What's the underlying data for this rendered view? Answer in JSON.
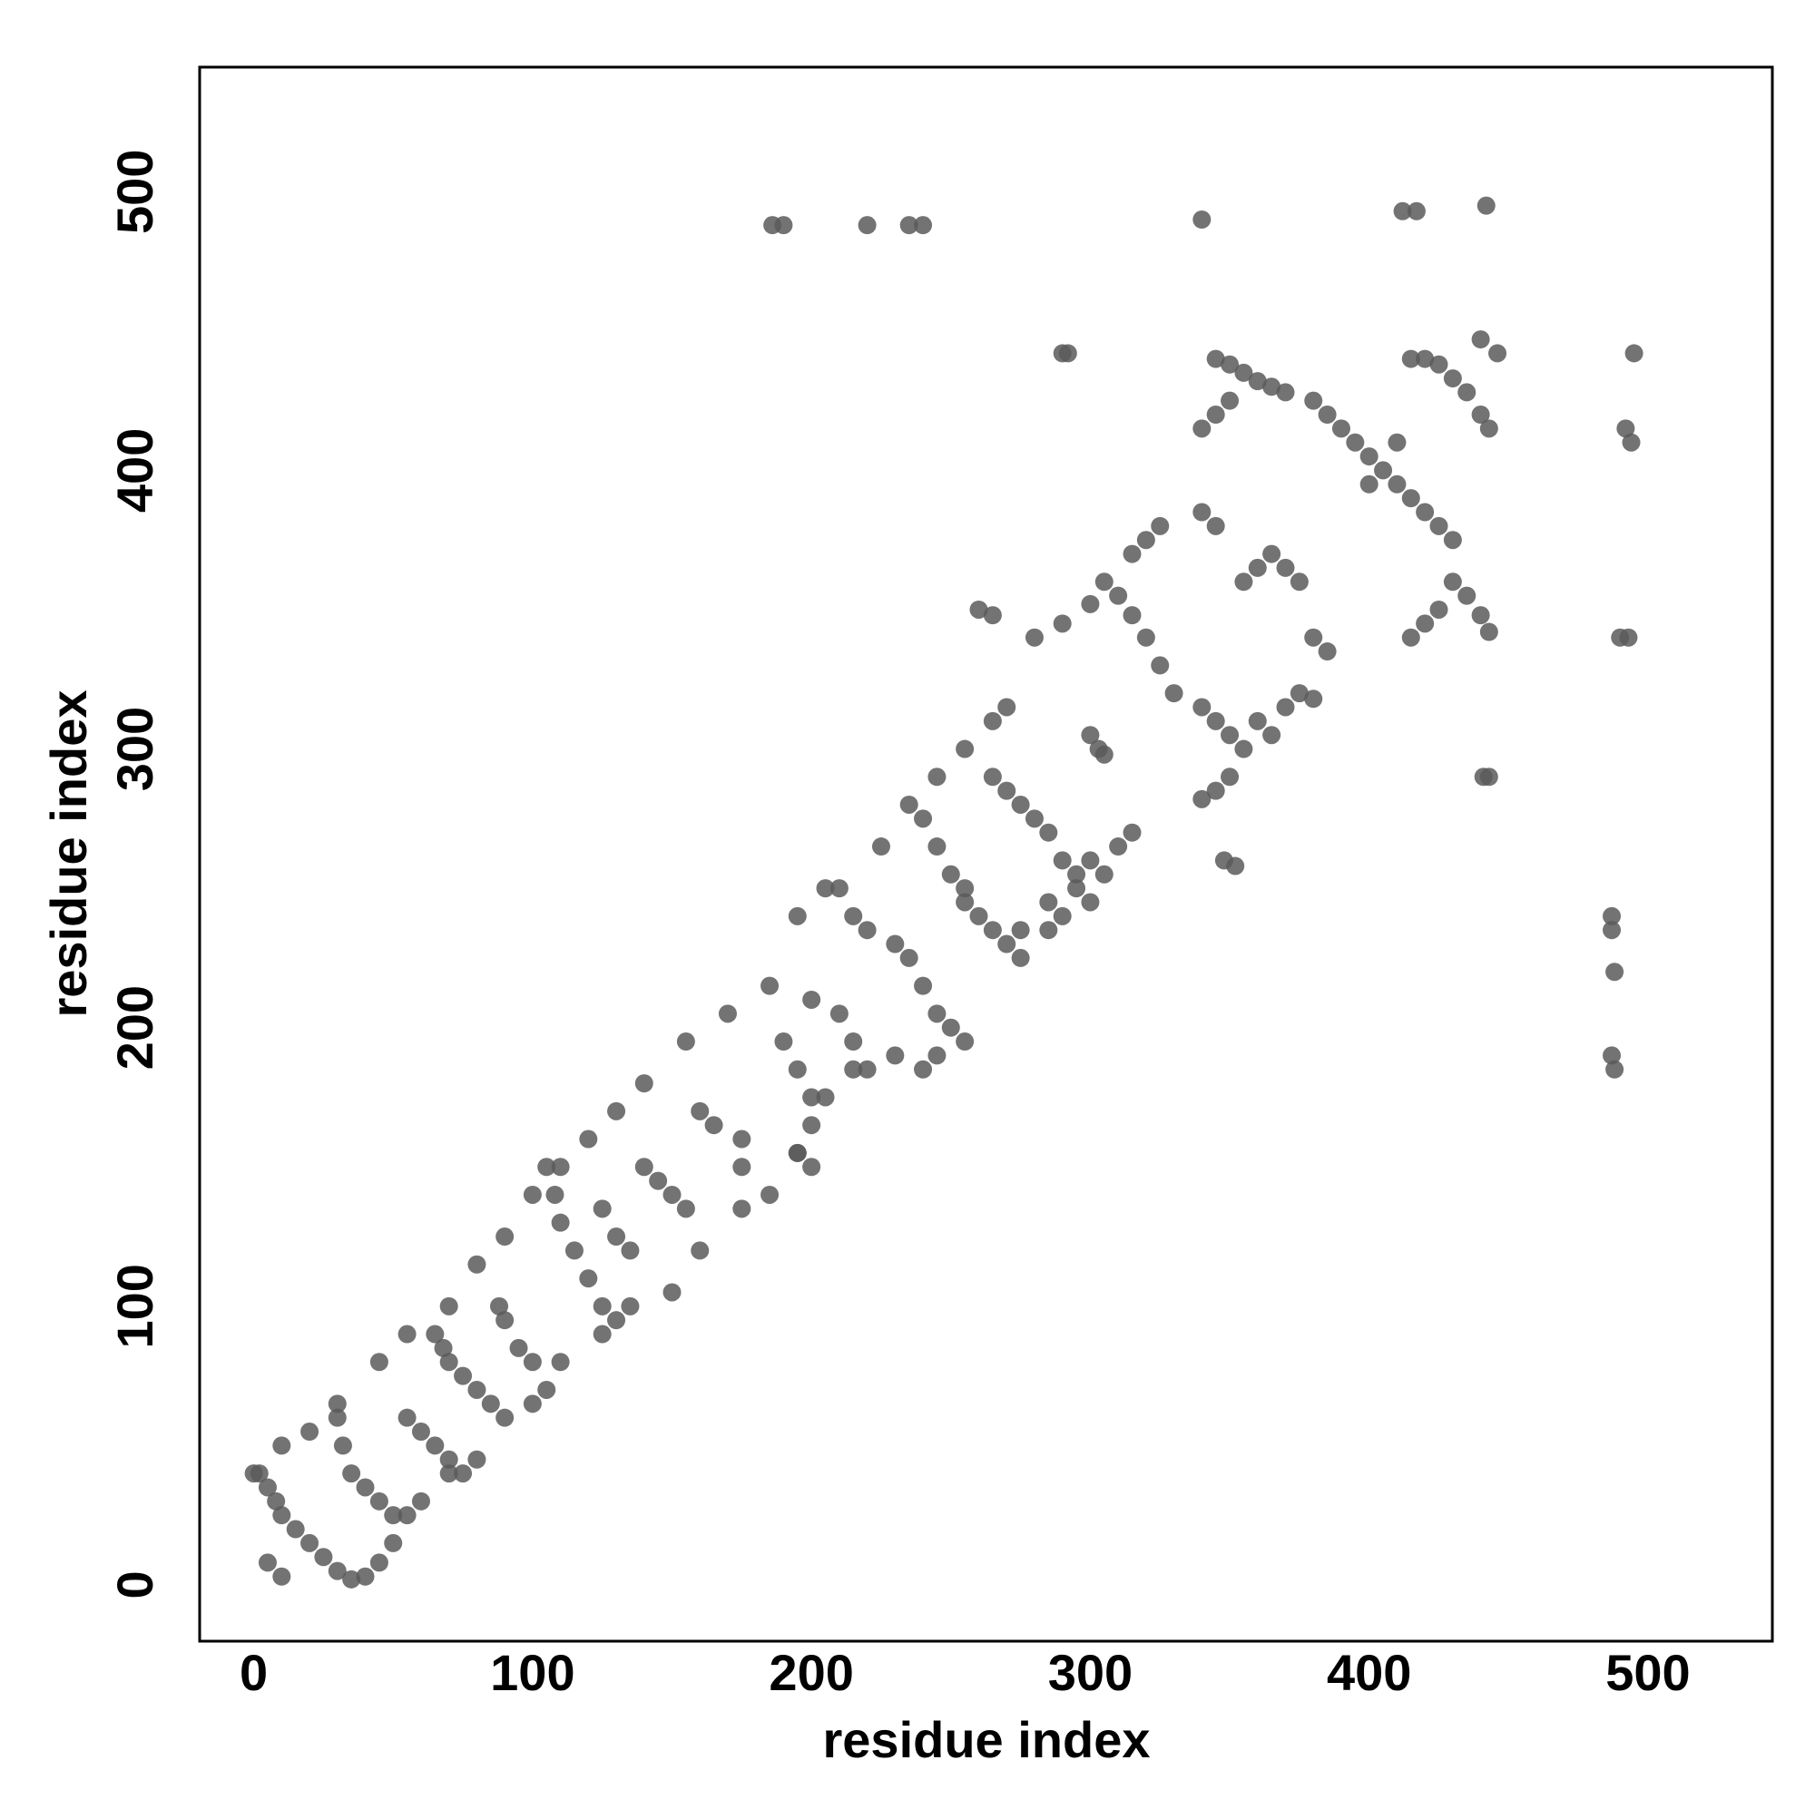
{
  "chart_data": {
    "type": "scatter",
    "xlabel": "residue index",
    "ylabel": "residue index",
    "xlim": [
      -19.4,
      544.6
    ],
    "ylim": [
      -20.2,
      544.7
    ],
    "xticks": [
      0,
      100,
      200,
      300,
      400,
      500
    ],
    "yticks": [
      0,
      100,
      200,
      300,
      400,
      500
    ],
    "color": "#5a5a5a",
    "x": [
      2,
      5,
      8,
      10,
      15,
      20,
      25,
      30,
      35,
      40,
      45,
      50,
      55,
      60,
      70,
      80,
      90,
      100,
      110,
      125,
      135,
      150,
      160,
      175,
      185,
      195,
      205,
      215,
      0,
      10,
      20,
      30,
      45,
      55,
      70,
      80,
      90,
      100,
      110,
      120,
      130,
      140,
      155,
      170,
      185,
      195,
      205,
      225,
      235,
      245,
      255,
      265,
      270,
      30,
      32,
      35,
      40,
      45,
      50,
      55,
      60,
      65,
      70,
      75,
      65,
      68,
      70,
      75,
      80,
      85,
      88,
      90,
      95,
      100,
      105,
      105,
      108,
      110,
      115,
      120,
      125,
      130,
      140,
      145,
      150,
      155,
      125,
      130,
      135,
      160,
      165,
      175,
      175,
      190,
      195,
      200,
      200,
      195,
      200,
      200,
      210,
      215,
      220,
      210,
      215,
      220,
      230,
      235,
      240,
      245,
      250,
      255,
      230,
      240,
      245,
      255,
      260,
      265,
      270,
      275,
      240,
      245,
      250,
      255,
      265,
      270,
      275,
      280,
      285,
      290,
      295,
      300,
      305,
      310,
      315,
      285,
      290,
      275,
      285,
      295,
      300,
      280,
      290,
      300,
      305,
      310,
      315,
      320,
      325,
      330,
      340,
      345,
      350,
      355,
      350,
      345,
      340,
      315,
      320,
      325,
      300,
      305,
      303,
      340,
      345,
      355,
      360,
      365,
      370,
      375,
      380,
      385,
      370,
      375,
      380,
      360,
      365,
      340,
      345,
      350,
      345,
      350,
      355,
      360,
      365,
      370,
      380,
      385,
      390,
      395,
      400,
      405,
      410,
      415,
      420,
      425,
      430,
      400,
      410,
      415,
      420,
      425,
      430,
      435,
      440,
      443,
      415,
      420,
      425,
      430,
      435,
      440,
      443,
      186,
      190,
      220,
      235,
      240,
      340,
      412,
      417,
      442,
      290,
      292,
      440,
      446,
      495,
      492,
      494,
      490,
      493,
      441,
      443,
      487,
      487,
      488,
      487,
      488,
      260,
      265,
      348,
      352,
      5,
      10
    ],
    "y": [
      40,
      35,
      30,
      25,
      20,
      15,
      10,
      5,
      2,
      3,
      8,
      15,
      25,
      30,
      40,
      45,
      60,
      65,
      80,
      90,
      100,
      105,
      120,
      135,
      140,
      155,
      175,
      185,
      40,
      50,
      55,
      65,
      80,
      90,
      100,
      115,
      125,
      140,
      150,
      160,
      170,
      180,
      195,
      205,
      215,
      240,
      250,
      265,
      280,
      290,
      300,
      310,
      315,
      60,
      50,
      40,
      35,
      30,
      25,
      60,
      55,
      50,
      45,
      40,
      90,
      85,
      80,
      75,
      70,
      65,
      100,
      95,
      85,
      80,
      70,
      150,
      140,
      130,
      120,
      110,
      100,
      95,
      150,
      145,
      140,
      135,
      135,
      125,
      120,
      170,
      165,
      160,
      150,
      195,
      185,
      175,
      165,
      155,
      150,
      210,
      205,
      195,
      185,
      250,
      240,
      235,
      230,
      225,
      215,
      205,
      200,
      195,
      190,
      185,
      190,
      245,
      240,
      235,
      230,
      225,
      275,
      265,
      255,
      250,
      290,
      285,
      280,
      275,
      270,
      260,
      250,
      245,
      255,
      265,
      270,
      235,
      240,
      235,
      245,
      255,
      260,
      340,
      345,
      352,
      360,
      355,
      348,
      340,
      330,
      320,
      315,
      310,
      305,
      300,
      290,
      285,
      282,
      370,
      375,
      380,
      305,
      298,
      300,
      385,
      380,
      360,
      365,
      370,
      365,
      360,
      340,
      335,
      315,
      320,
      318,
      310,
      305,
      415,
      420,
      425,
      440,
      438,
      435,
      432,
      430,
      428,
      425,
      420,
      415,
      410,
      405,
      400,
      395,
      390,
      385,
      380,
      375,
      395,
      410,
      440,
      440,
      438,
      433,
      428,
      420,
      415,
      340,
      345,
      350,
      360,
      355,
      348,
      342,
      488,
      488,
      488,
      488,
      488,
      490,
      493,
      493,
      495,
      442,
      442,
      447,
      442,
      442,
      415,
      410,
      340,
      340,
      290,
      290,
      240,
      235,
      220,
      190,
      185,
      350,
      348,
      260,
      258,
      8,
      3
    ]
  }
}
